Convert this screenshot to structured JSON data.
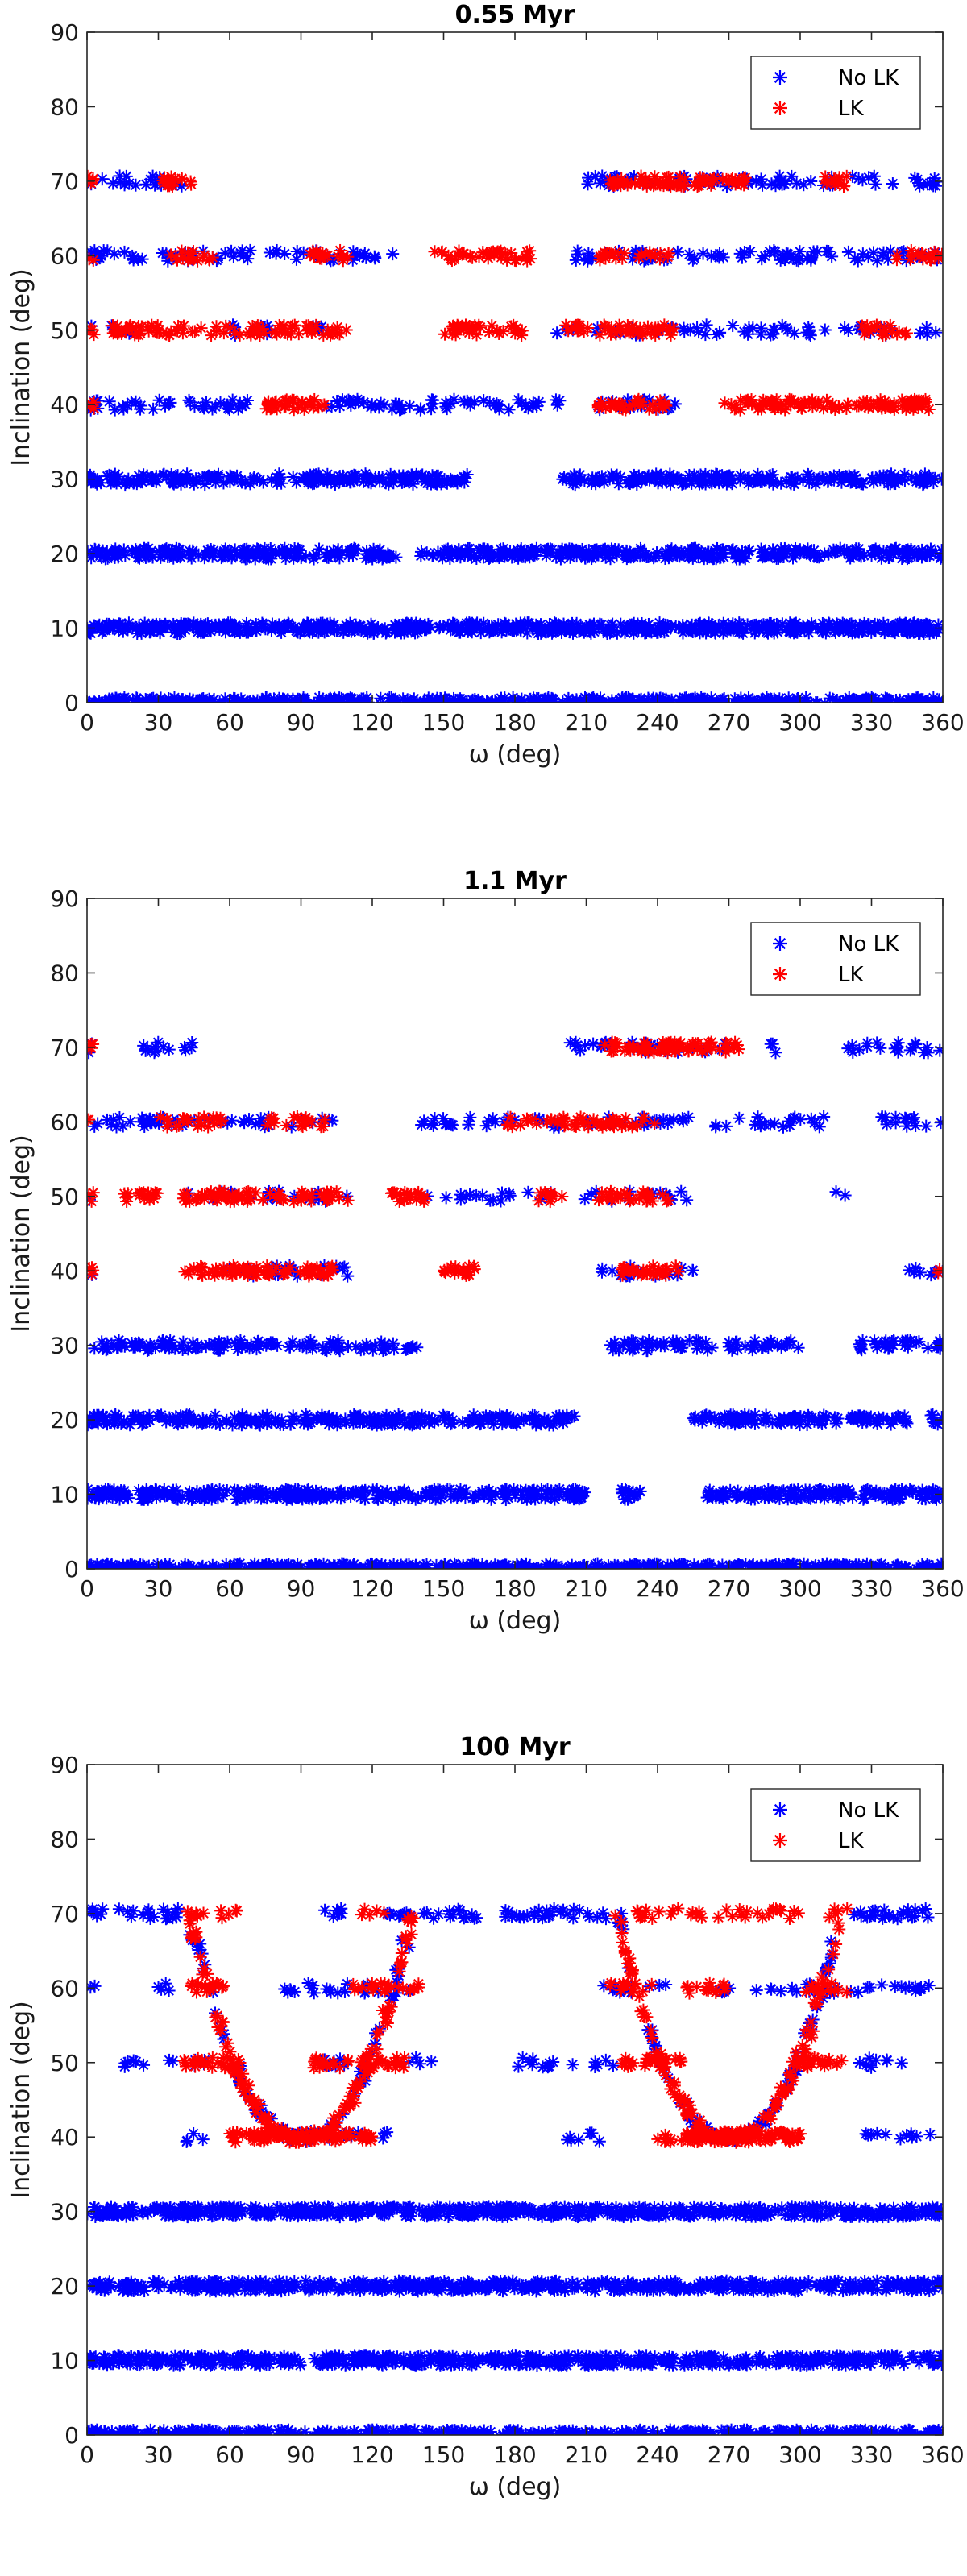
{
  "chart_data": [
    {
      "type": "scatter",
      "title": "0.55 Myr",
      "xlabel": "ω (deg)",
      "ylabel": "Inclination (deg)",
      "xlim": [
        0,
        360
      ],
      "ylim": [
        0,
        90
      ],
      "xticks": [
        "0",
        "30",
        "60",
        "90",
        "120",
        "150",
        "180",
        "210",
        "240",
        "270",
        "300",
        "330",
        "360"
      ],
      "yticks": [
        "0",
        "10",
        "20",
        "30",
        "40",
        "50",
        "60",
        "70",
        "80",
        "90"
      ],
      "grid": false,
      "legend_position": "top-right",
      "series": [
        {
          "name": "No LK",
          "color": "#0000ff",
          "marker": "asterisk",
          "bands": [
            {
              "y": 0,
              "segments": [
                [
                  0,
                  360
                ]
              ],
              "density": 2.0
            },
            {
              "y": 10,
              "segments": [
                [
                  0,
                  360
                ]
              ],
              "density": 1.8
            },
            {
              "y": 20,
              "segments": [
                [
                  0,
                  130
                ],
                [
                  140,
                  360
                ]
              ],
              "density": 1.5
            },
            {
              "y": 30,
              "segments": [
                [
                  0,
                  160
                ],
                [
                  200,
                  360
                ]
              ],
              "density": 1.3
            },
            {
              "y": 40,
              "segments": [
                [
                  0,
                  70
                ],
                [
                  100,
                  200
                ],
                [
                  215,
                  250
                ]
              ],
              "density": 0.6
            },
            {
              "y": 50,
              "segments": [
                [
                  0,
                  20
                ],
                [
                  60,
                  100
                ],
                [
                  195,
                  360
                ]
              ],
              "density": 0.35
            },
            {
              "y": 60,
              "segments": [
                [
                  0,
                  130
                ],
                [
                  205,
                  360
                ]
              ],
              "density": 0.55
            },
            {
              "y": 70,
              "segments": [
                [
                  0,
                  40
                ],
                [
                  210,
                  360
                ]
              ],
              "density": 0.55
            }
          ]
        },
        {
          "name": "LK",
          "color": "#ff0000",
          "marker": "asterisk",
          "bands": [
            {
              "y": 40,
              "segments": [
                [
                  0,
                  3
                ],
                [
                  75,
                  100
                ],
                [
                  215,
                  245
                ],
                [
                  265,
                  355
                ]
              ],
              "density": 1.2
            },
            {
              "y": 50,
              "segments": [
                [
                  0,
                  3
                ],
                [
                  10,
                  110
                ],
                [
                  150,
                  185
                ],
                [
                  200,
                  250
                ],
                [
                  325,
                  345
                ]
              ],
              "density": 0.9
            },
            {
              "y": 60,
              "segments": [
                [
                  0,
                  3
                ],
                [
                  35,
                  55
                ],
                [
                  90,
                  110
                ],
                [
                  145,
                  190
                ],
                [
                  215,
                  245
                ],
                [
                  340,
                  360
                ]
              ],
              "density": 0.8
            },
            {
              "y": 70,
              "segments": [
                [
                  0,
                  3
                ],
                [
                  30,
                  45
                ],
                [
                  220,
                  280
                ],
                [
                  310,
                  320
                ]
              ],
              "density": 1.2
            }
          ]
        }
      ]
    },
    {
      "type": "scatter",
      "title": "1.1 Myr",
      "xlabel": "ω (deg)",
      "ylabel": "Inclination (deg)",
      "xlim": [
        0,
        360
      ],
      "ylim": [
        0,
        90
      ],
      "xticks": [
        "0",
        "30",
        "60",
        "90",
        "120",
        "150",
        "180",
        "210",
        "240",
        "270",
        "300",
        "330",
        "360"
      ],
      "yticks": [
        "0",
        "10",
        "20",
        "30",
        "40",
        "50",
        "60",
        "70",
        "80",
        "90"
      ],
      "grid": false,
      "legend_position": "top-right",
      "series": [
        {
          "name": "No LK",
          "color": "#0000ff",
          "marker": "asterisk",
          "bands": [
            {
              "y": 0,
              "segments": [
                [
                  0,
                  360
                ]
              ],
              "density": 2.0
            },
            {
              "y": 10,
              "segments": [
                [
                  0,
                  210
                ],
                [
                  225,
                  235
                ],
                [
                  260,
                  360
                ]
              ],
              "density": 1.5
            },
            {
              "y": 20,
              "segments": [
                [
                  0,
                  205
                ],
                [
                  255,
                  345
                ],
                [
                  355,
                  360
                ]
              ],
              "density": 1.3
            },
            {
              "y": 30,
              "segments": [
                [
                  0,
                  140
                ],
                [
                  220,
                  265
                ],
                [
                  270,
                  300
                ],
                [
                  325,
                  360
                ]
              ],
              "density": 0.9
            },
            {
              "y": 40,
              "segments": [
                [
                  0,
                  3
                ],
                [
                  50,
                  110
                ],
                [
                  215,
                  255
                ],
                [
                  340,
                  360
                ]
              ],
              "density": 0.4
            },
            {
              "y": 50,
              "segments": [
                [
                  0,
                  3
                ],
                [
                  40,
                  110
                ],
                [
                  140,
                  200
                ],
                [
                  205,
                  255
                ],
                [
                  315,
                  320
                ]
              ],
              "density": 0.3
            },
            {
              "y": 60,
              "segments": [
                [
                  0,
                  110
                ],
                [
                  140,
                  200
                ],
                [
                  210,
                  310
                ],
                [
                  330,
                  360
                ]
              ],
              "density": 0.45
            },
            {
              "y": 70,
              "segments": [
                [
                  0,
                  3
                ],
                [
                  20,
                  45
                ],
                [
                  200,
                  270
                ],
                [
                  285,
                  290
                ],
                [
                  320,
                  360
                ]
              ],
              "density": 0.5
            }
          ]
        },
        {
          "name": "LK",
          "color": "#ff0000",
          "marker": "asterisk",
          "bands": [
            {
              "y": 40,
              "segments": [
                [
                  0,
                  3
                ],
                [
                  40,
                  105
                ],
                [
                  150,
                  165
                ],
                [
                  225,
                  250
                ],
                [
                  358,
                  360
                ]
              ],
              "density": 1.2
            },
            {
              "y": 50,
              "segments": [
                [
                  0,
                  3
                ],
                [
                  15,
                  30
                ],
                [
                  40,
                  110
                ],
                [
                  125,
                  145
                ],
                [
                  190,
                  200
                ],
                [
                  215,
                  245
                ]
              ],
              "density": 1.0
            },
            {
              "y": 60,
              "segments": [
                [
                  0,
                  3
                ],
                [
                  30,
                  60
                ],
                [
                  75,
                  100
                ],
                [
                  175,
                  240
                ]
              ],
              "density": 0.8
            },
            {
              "y": 70,
              "segments": [
                [
                  0,
                  3
                ],
                [
                  215,
                  275
                ]
              ],
              "density": 1.2
            }
          ]
        }
      ]
    },
    {
      "type": "scatter",
      "title": "100 Myr",
      "xlabel": "ω (deg)",
      "ylabel": "Inclination (deg)",
      "xlim": [
        0,
        360
      ],
      "ylim": [
        0,
        90
      ],
      "xticks": [
        "0",
        "30",
        "60",
        "90",
        "120",
        "150",
        "180",
        "210",
        "240",
        "270",
        "300",
        "330",
        "360"
      ],
      "yticks": [
        "0",
        "10",
        "20",
        "30",
        "40",
        "50",
        "60",
        "70",
        "80",
        "90"
      ],
      "grid": false,
      "legend_position": "top-right",
      "series": [
        {
          "name": "No LK",
          "color": "#0000ff",
          "marker": "asterisk",
          "bands": [
            {
              "y": 0,
              "segments": [
                [
                  0,
                  360
                ]
              ],
              "density": 2.0
            },
            {
              "y": 10,
              "segments": [
                [
                  0,
                  90
                ],
                [
                  95,
                  360
                ]
              ],
              "density": 1.6
            },
            {
              "y": 20,
              "segments": [
                [
                  0,
                  360
                ]
              ],
              "density": 1.6
            },
            {
              "y": 30,
              "segments": [
                [
                  0,
                  360
                ]
              ],
              "density": 1.7
            },
            {
              "y": 40,
              "segments": [
                [
                  40,
                  50
                ],
                [
                  85,
                  130
                ],
                [
                  200,
                  220
                ],
                [
                  325,
                  355
                ]
              ],
              "density": 0.35
            },
            {
              "y": 50,
              "segments": [
                [
                  15,
                  50
                ],
                [
                  90,
                  110
                ],
                [
                  135,
                  145
                ],
                [
                  180,
                  225
                ],
                [
                  320,
                  345
                ]
              ],
              "density": 0.35
            },
            {
              "y": 60,
              "segments": [
                [
                  0,
                  5
                ],
                [
                  30,
                  40
                ],
                [
                  80,
                  140
                ],
                [
                  215,
                  245
                ],
                [
                  265,
                  360
                ]
              ],
              "density": 0.35
            },
            {
              "y": 70,
              "segments": [
                [
                  0,
                  40
                ],
                [
                  100,
                  110
                ],
                [
                  125,
                  165
                ],
                [
                  175,
                  225
                ],
                [
                  320,
                  360
                ]
              ],
              "density": 0.6
            }
          ],
          "arcs": [
            {
              "center": 90,
              "half_width": 47,
              "ymin": 40,
              "ymax": 70,
              "count": 90
            },
            {
              "center": 270,
              "half_width": 47,
              "ymin": 40,
              "ymax": 70,
              "count": 90
            }
          ]
        },
        {
          "name": "LK",
          "color": "#ff0000",
          "marker": "asterisk",
          "bands": [
            {
              "y": 40,
              "segments": [
                [
                  60,
                  120
                ],
                [
                  240,
                  300
                ]
              ],
              "density": 1.4
            },
            {
              "y": 50,
              "segments": [
                [
                  40,
                  65
                ],
                [
                  95,
                  110
                ],
                [
                  115,
                  135
                ],
                [
                  225,
                  250
                ],
                [
                  300,
                  320
                ]
              ],
              "density": 1.0
            },
            {
              "y": 60,
              "segments": [
                [
                  40,
                  60
                ],
                [
                  110,
                  140
                ],
                [
                  220,
                  240
                ],
                [
                  250,
                  270
                ],
                [
                  300,
                  320
                ]
              ],
              "density": 0.7
            },
            {
              "y": 70,
              "segments": [
                [
                  40,
                  50
                ],
                [
                  55,
                  65
                ],
                [
                  115,
                  125
                ],
                [
                  230,
                  300
                ],
                [
                  310,
                  320
                ]
              ],
              "density": 0.5
            }
          ],
          "arcs": [
            {
              "center": 90,
              "half_width": 47,
              "ymin": 40,
              "ymax": 70,
              "count": 150
            },
            {
              "center": 270,
              "half_width": 47,
              "ymin": 40,
              "ymax": 70,
              "count": 150
            }
          ]
        }
      ]
    }
  ]
}
